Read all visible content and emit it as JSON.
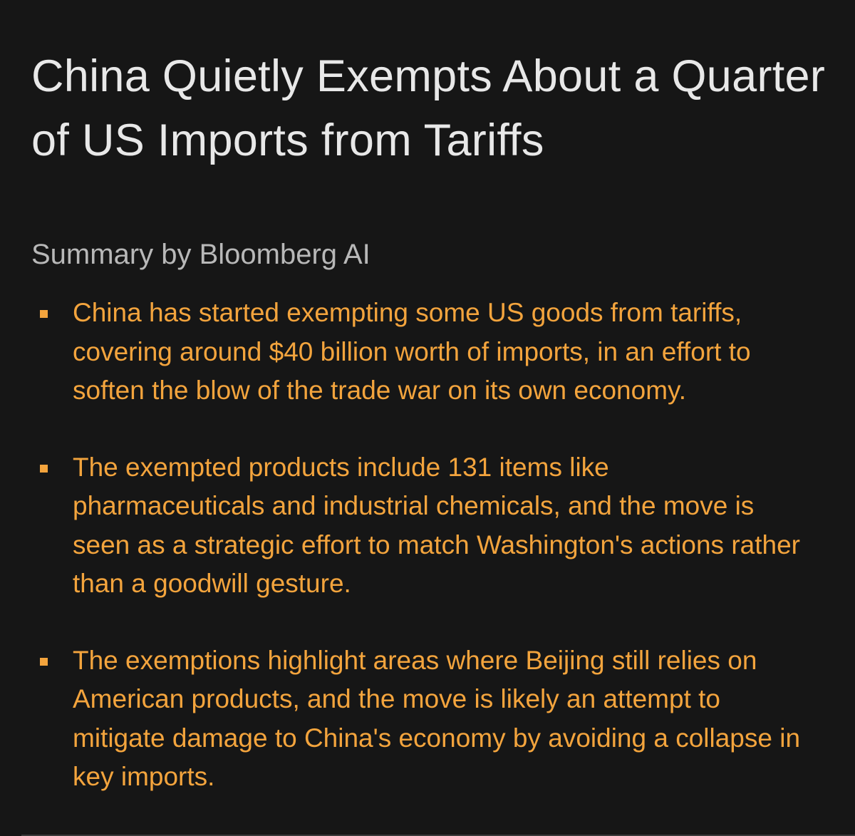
{
  "header": {
    "title": "China Quietly Exempts About a Quarter of US Imports from Tariffs",
    "subtitle": "Summary by Bloomberg AI"
  },
  "bullets": [
    "China has started exempting some US goods from tariffs, covering around $40 billion worth of imports, in an effort to soften the blow of the trade war on its own economy.",
    "The exempted products include 131 items like pharmaceuticals and industrial chemicals, and the move is seen as a strategic effort to match Washington's actions rather than a goodwill gesture.",
    "The exemptions highlight areas where Beijing still relies on American products, and the move is likely an attempt to mitigate damage to China's economy by avoiding a collapse in key imports."
  ]
}
